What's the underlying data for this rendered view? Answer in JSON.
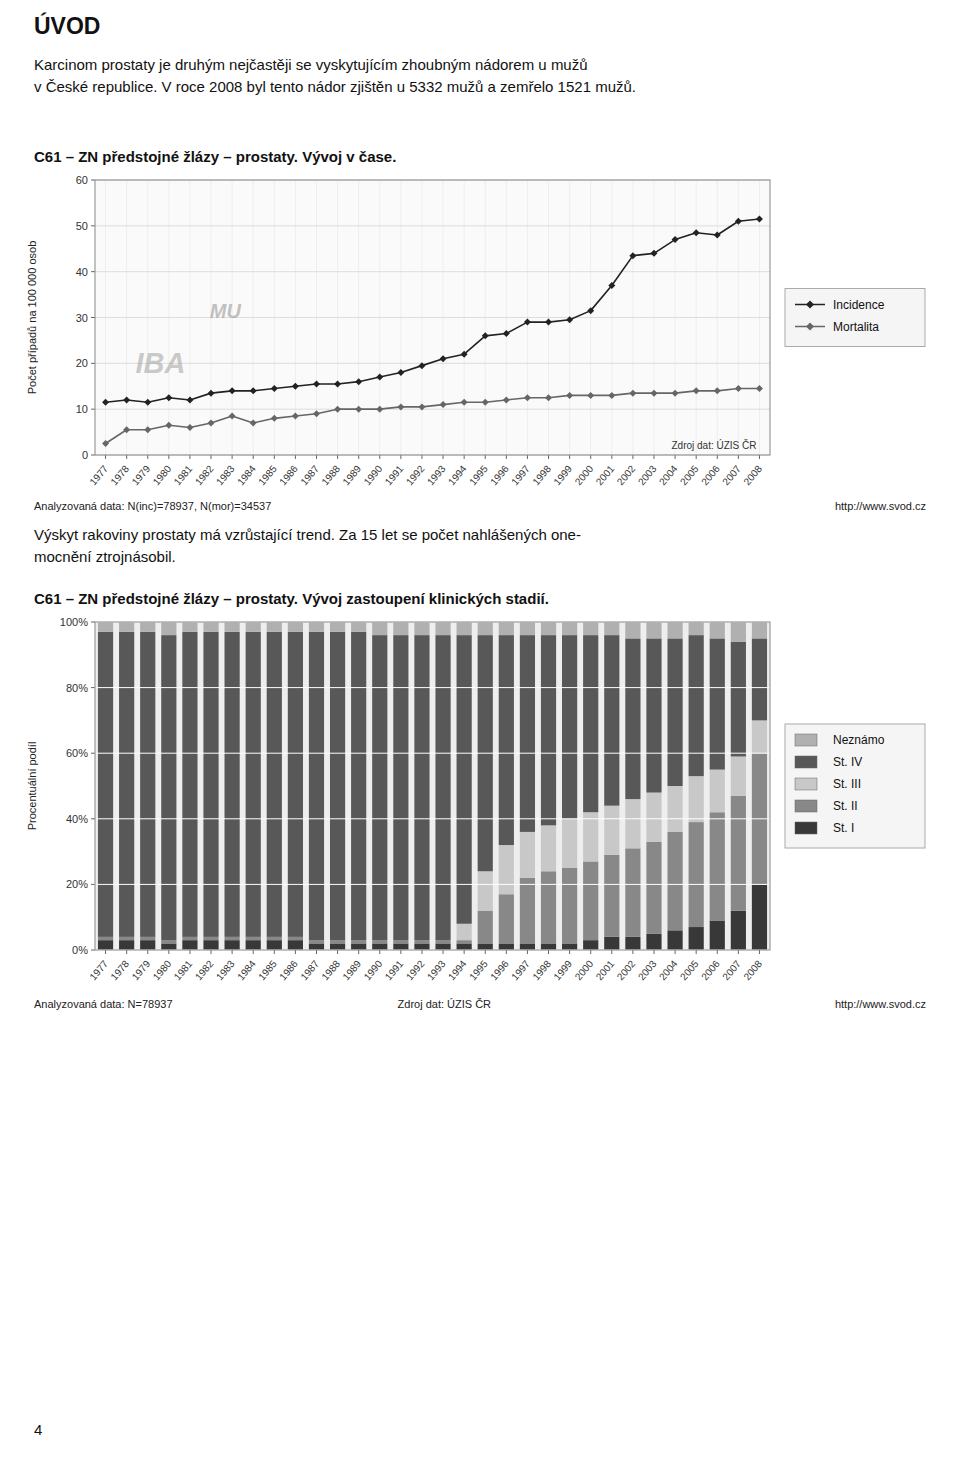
{
  "header": "ÚVOD",
  "intro_text": [
    "Karcinom prostaty je druhým nejčastěji se vyskytujícím zhoubným nádorem u mužů",
    "v České republice. V roce 2008 byl tento nádor zjištěn u 5332 mužů a zemřelo 1521 mužů."
  ],
  "mid_text": [
    "Výskyt rakoviny prostaty má vzrůstající trend. Za 15 let se počet nahlášených one-",
    "mocnění ztrojnásobil."
  ],
  "page_number": "4",
  "chart_data": [
    {
      "type": "line",
      "title": "C61 – ZN předstojné žlázy – prostaty. Vývoj v čase.",
      "ylabel": "Počet případů na 100 000 osob",
      "x": [
        1977,
        1978,
        1979,
        1980,
        1981,
        1982,
        1983,
        1984,
        1985,
        1986,
        1987,
        1988,
        1989,
        1990,
        1991,
        1992,
        1993,
        1994,
        1995,
        1996,
        1997,
        1998,
        1999,
        2000,
        2001,
        2002,
        2003,
        2004,
        2005,
        2006,
        2007,
        2008
      ],
      "xlim": [
        1976.5,
        2008.5
      ],
      "xticks": [
        1977,
        1978,
        1979,
        1980,
        1981,
        1982,
        1983,
        1984,
        1985,
        1986,
        1987,
        1988,
        1989,
        1990,
        1991,
        1992,
        1993,
        1994,
        1995,
        1996,
        1997,
        1998,
        1999,
        2000,
        2001,
        2002,
        2003,
        2004,
        2005,
        2006,
        2007,
        2008
      ],
      "ylim": [
        0,
        60
      ],
      "yticks": [
        0,
        10,
        20,
        30,
        40,
        50,
        60
      ],
      "grid": true,
      "legend": "right",
      "series": [
        {
          "name": "Incidence",
          "color": "#222222",
          "marker": "diamond",
          "values": [
            11.5,
            12.0,
            11.5,
            12.5,
            12.0,
            13.5,
            14.0,
            14.0,
            14.5,
            15.0,
            15.5,
            15.5,
            16.0,
            17.0,
            18.0,
            19.5,
            21.0,
            22.0,
            26.0,
            26.5,
            29.0,
            29.0,
            29.5,
            31.5,
            37.0,
            43.5,
            44.0,
            47.0,
            48.5,
            48.0,
            51.0,
            51.5
          ]
        },
        {
          "name": "Mortalita",
          "color": "#666666",
          "marker": "diamond",
          "values": [
            2.5,
            5.5,
            5.5,
            6.5,
            6.0,
            7.0,
            8.5,
            7.0,
            8.0,
            8.5,
            9.0,
            10.0,
            10.0,
            10.0,
            10.5,
            10.5,
            11.0,
            11.5,
            11.5,
            12.0,
            12.5,
            12.5,
            13.0,
            13.0,
            13.0,
            13.5,
            13.5,
            13.5,
            14.0,
            14.0,
            14.5,
            14.5
          ]
        }
      ],
      "annotations": [
        "MU",
        "IBA",
        "Zdroj dat: ÚZIS ČR",
        "Analyzovaná data: N(inc)=78937, N(mor)=34537",
        "http://www.svod.cz"
      ]
    },
    {
      "type": "bar",
      "stacked": true,
      "title": "C61 – ZN předstojné žlázy – prostaty. Vývoj zastoupení klinických stadií.",
      "ylabel": "Procentuální podíl",
      "categories": [
        "1977",
        "1978",
        "1979",
        "1980",
        "1981",
        "1982",
        "1983",
        "1984",
        "1985",
        "1986",
        "1987",
        "1988",
        "1989",
        "1990",
        "1991",
        "1992",
        "1993",
        "1994",
        "1995",
        "1996",
        "1997",
        "1998",
        "1999",
        "2000",
        "2001",
        "2002",
        "2003",
        "2004",
        "2005",
        "2006",
        "2007",
        "2008"
      ],
      "ylim": [
        0,
        100
      ],
      "yticks": [
        {
          "value": 0,
          "label": "0%"
        },
        {
          "value": 20,
          "label": "20%"
        },
        {
          "value": 40,
          "label": "40%"
        },
        {
          "value": 60,
          "label": "60%"
        },
        {
          "value": 80,
          "label": "80%"
        },
        {
          "value": 100,
          "label": "100%"
        }
      ],
      "grid": true,
      "legend": "right",
      "series": [
        {
          "name": "St. I",
          "color": "#383838",
          "values": [
            3,
            3,
            3,
            2,
            3,
            3,
            3,
            3,
            3,
            3,
            2,
            2,
            2,
            2,
            2,
            2,
            2,
            2,
            2,
            2,
            2,
            2,
            2,
            3,
            4,
            4,
            5,
            6,
            7,
            9,
            12,
            20
          ]
        },
        {
          "name": "St. II",
          "color": "#888888",
          "values": [
            1,
            1,
            1,
            1,
            1,
            1,
            1,
            1,
            1,
            1,
            1,
            1,
            1,
            1,
            1,
            1,
            1,
            1,
            10,
            15,
            20,
            22,
            23,
            24,
            25,
            27,
            28,
            30,
            32,
            33,
            35,
            40
          ]
        },
        {
          "name": "St. III",
          "color": "#c8c8c8",
          "values": [
            0,
            0,
            0,
            0,
            0,
            0,
            0,
            0,
            0,
            0,
            0,
            0,
            0,
            0,
            0,
            0,
            0,
            5,
            12,
            15,
            14,
            14,
            15,
            15,
            15,
            15,
            15,
            14,
            14,
            13,
            12,
            10
          ]
        },
        {
          "name": "St. IV",
          "color": "#585858",
          "values": [
            93,
            93,
            93,
            93,
            93,
            93,
            93,
            93,
            93,
            93,
            94,
            94,
            94,
            93,
            93,
            93,
            93,
            88,
            72,
            64,
            60,
            58,
            56,
            54,
            52,
            49,
            47,
            45,
            43,
            40,
            35,
            25
          ]
        },
        {
          "name": "Neznámo",
          "color": "#b0b0b0",
          "values": [
            3,
            3,
            3,
            4,
            3,
            3,
            3,
            3,
            3,
            3,
            3,
            3,
            3,
            4,
            4,
            4,
            4,
            4,
            4,
            4,
            4,
            4,
            4,
            4,
            4,
            5,
            5,
            5,
            4,
            5,
            6,
            5
          ]
        }
      ],
      "annotations": [
        "Analyzovaná data: N=78937",
        "Zdroj dat: ÚZIS ČR",
        "http://www.svod.cz"
      ]
    }
  ]
}
